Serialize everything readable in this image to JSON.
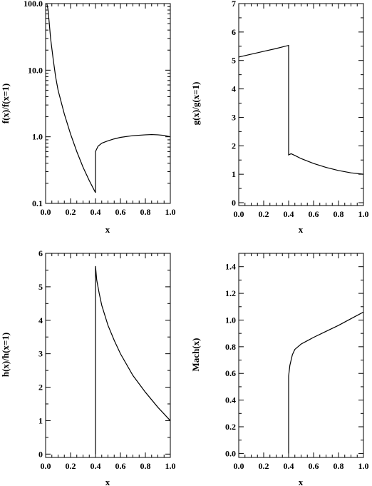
{
  "chart_data": [
    {
      "id": "panel-f",
      "type": "line",
      "xlabel": "x",
      "ylabel": "f(x)/f(x=1)",
      "xlim": [
        0,
        1
      ],
      "ylim": [
        0.1,
        100
      ],
      "yscale": "log",
      "xticks": [
        0,
        0.2,
        0.4,
        0.6,
        0.8,
        1.0
      ],
      "xtick_labels": [
        "0.0",
        "0.2",
        "0.4",
        "0.6",
        "0.8",
        "1.0"
      ],
      "yticks": [
        0.1,
        1,
        10,
        100
      ],
      "ytick_labels": [
        "0.1",
        "1.0",
        "10.0",
        "100.0"
      ],
      "series": [
        {
          "x": [
            0.01,
            0.02,
            0.04,
            0.06,
            0.08,
            0.1,
            0.15,
            0.2,
            0.25,
            0.3,
            0.35,
            0.4,
            0.4,
            0.42,
            0.45,
            0.5,
            0.55,
            0.6,
            0.7,
            0.8,
            0.85,
            0.9,
            0.95,
            1.0
          ],
          "y": [
            100,
            80,
            30,
            15,
            8,
            5,
            2.2,
            1.1,
            0.6,
            0.35,
            0.22,
            0.145,
            0.6,
            0.72,
            0.8,
            0.87,
            0.93,
            0.98,
            1.04,
            1.07,
            1.08,
            1.07,
            1.05,
            1.0
          ]
        }
      ]
    },
    {
      "id": "panel-g",
      "type": "line",
      "xlabel": "x",
      "ylabel": "g(x)/g(x=1)",
      "xlim": [
        0,
        1
      ],
      "ylim": [
        -0.1,
        7
      ],
      "yscale": "linear",
      "xticks": [
        0,
        0.2,
        0.4,
        0.6,
        0.8,
        1.0
      ],
      "xtick_labels": [
        "0.0",
        "0.2",
        "0.4",
        "0.6",
        "0.8",
        "1.0"
      ],
      "yticks": [
        0,
        1,
        2,
        3,
        4,
        5,
        6,
        7
      ],
      "ytick_labels": [
        "0",
        "1",
        "2",
        "3",
        "4",
        "5",
        "6",
        "7"
      ],
      "series": [
        {
          "x": [
            0.0,
            0.1,
            0.2,
            0.3,
            0.4,
            0.4,
            0.42,
            0.45,
            0.5,
            0.6,
            0.7,
            0.8,
            0.9,
            1.0
          ],
          "y": [
            5.12,
            5.22,
            5.32,
            5.42,
            5.53,
            1.68,
            1.72,
            1.66,
            1.55,
            1.38,
            1.24,
            1.13,
            1.05,
            1.0
          ]
        }
      ]
    },
    {
      "id": "panel-h",
      "type": "line",
      "xlabel": "x",
      "ylabel": "h(x)/h(x=1)",
      "xlim": [
        0,
        1
      ],
      "ylim": [
        -0.1,
        6
      ],
      "yscale": "linear",
      "xticks": [
        0,
        0.2,
        0.4,
        0.6,
        0.8,
        1.0
      ],
      "xtick_labels": [
        "0.0",
        "0.2",
        "0.4",
        "0.6",
        "0.8",
        "1.0"
      ],
      "yticks": [
        0,
        1,
        2,
        3,
        4,
        5,
        6
      ],
      "ytick_labels": [
        "0",
        "1",
        "2",
        "3",
        "4",
        "5",
        "6"
      ],
      "series": [
        {
          "x": [
            0.4,
            0.4,
            0.41,
            0.43,
            0.45,
            0.5,
            0.55,
            0.6,
            0.7,
            0.8,
            0.9,
            1.0
          ],
          "y": [
            0,
            5.62,
            5.2,
            4.8,
            4.45,
            3.85,
            3.4,
            3.0,
            2.35,
            1.85,
            1.4,
            1.0
          ]
        }
      ]
    },
    {
      "id": "panel-mach",
      "type": "line",
      "xlabel": "x",
      "ylabel": "Mach(x)",
      "xlim": [
        0,
        1
      ],
      "ylim": [
        -0.03,
        1.5
      ],
      "yscale": "linear",
      "xticks": [
        0,
        0.2,
        0.4,
        0.6,
        0.8,
        1.0
      ],
      "xtick_labels": [
        "0.0",
        "0.2",
        "0.4",
        "0.6",
        "0.8",
        "1.0"
      ],
      "yticks": [
        0,
        0.2,
        0.4,
        0.6,
        0.8,
        1.0,
        1.2,
        1.4
      ],
      "ytick_labels": [
        "0.0",
        "0.2",
        "0.4",
        "0.6",
        "0.8",
        "1.0",
        "1.2",
        "1.4"
      ],
      "series": [
        {
          "x": [
            0.4,
            0.4,
            0.41,
            0.43,
            0.45,
            0.5,
            0.55,
            0.6,
            0.7,
            0.8,
            0.9,
            1.0
          ],
          "y": [
            0,
            0.58,
            0.66,
            0.74,
            0.78,
            0.82,
            0.845,
            0.87,
            0.915,
            0.96,
            1.01,
            1.06
          ]
        }
      ]
    }
  ]
}
